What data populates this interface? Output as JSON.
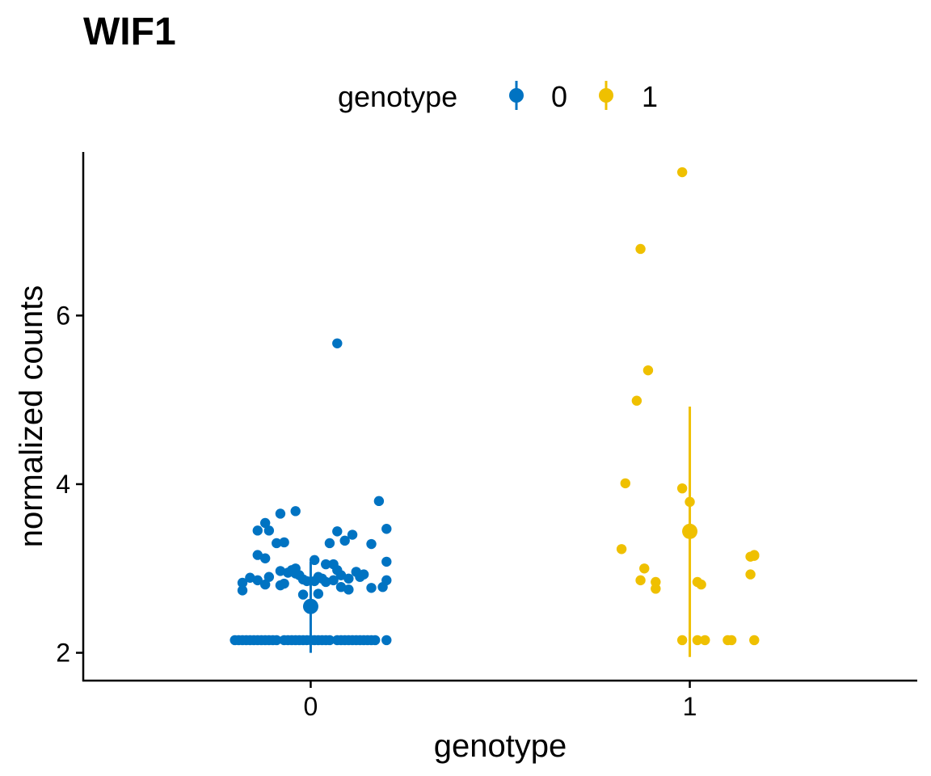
{
  "chart_data": {
    "type": "scatter",
    "title": "WIF1",
    "xlabel": "genotype",
    "ylabel": "normalized counts",
    "categories": [
      "0",
      "1"
    ],
    "y_ticks": [
      2,
      4,
      6
    ],
    "ylim": [
      1.67,
      7.94
    ],
    "xlim": [
      -0.6,
      1.6
    ],
    "grid": false,
    "legend": {
      "title": "genotype",
      "position": "top",
      "entries": [
        "0",
        "1"
      ]
    },
    "colors": {
      "0": "#0073C2",
      "1": "#EFC000"
    },
    "series": [
      {
        "name": "0",
        "summary": {
          "x": 0,
          "mean": 2.55,
          "ymin": 2.0,
          "ymax": 3.08
        },
        "points": [
          [
            -0.2,
            2.15
          ],
          [
            -0.19,
            2.15
          ],
          [
            -0.18,
            2.15
          ],
          [
            -0.17,
            2.15
          ],
          [
            -0.16,
            2.15
          ],
          [
            -0.15,
            2.15
          ],
          [
            -0.14,
            2.15
          ],
          [
            -0.13,
            2.15
          ],
          [
            -0.12,
            2.15
          ],
          [
            -0.11,
            2.15
          ],
          [
            -0.1,
            2.15
          ],
          [
            -0.09,
            2.15
          ],
          [
            -0.07,
            2.15
          ],
          [
            -0.06,
            2.15
          ],
          [
            -0.05,
            2.15
          ],
          [
            -0.04,
            2.15
          ],
          [
            -0.03,
            2.15
          ],
          [
            -0.02,
            2.15
          ],
          [
            -0.01,
            2.15
          ],
          [
            0.0,
            2.15
          ],
          [
            0.01,
            2.15
          ],
          [
            0.02,
            2.15
          ],
          [
            0.03,
            2.15
          ],
          [
            0.04,
            2.15
          ],
          [
            0.05,
            2.15
          ],
          [
            0.07,
            2.15
          ],
          [
            0.08,
            2.15
          ],
          [
            0.09,
            2.15
          ],
          [
            0.1,
            2.15
          ],
          [
            0.11,
            2.15
          ],
          [
            0.12,
            2.15
          ],
          [
            0.13,
            2.15
          ],
          [
            0.14,
            2.15
          ],
          [
            0.15,
            2.15
          ],
          [
            0.16,
            2.15
          ],
          [
            0.17,
            2.15
          ],
          [
            0.2,
            2.15
          ],
          [
            -0.18,
            2.74
          ],
          [
            -0.18,
            2.83
          ],
          [
            -0.16,
            2.89
          ],
          [
            -0.14,
            2.86
          ],
          [
            -0.12,
            2.81
          ],
          [
            -0.14,
            3.45
          ],
          [
            -0.12,
            3.54
          ],
          [
            -0.11,
            3.45
          ],
          [
            -0.14,
            3.16
          ],
          [
            -0.12,
            3.12
          ],
          [
            -0.11,
            2.9
          ],
          [
            -0.09,
            3.3
          ],
          [
            -0.07,
            3.31
          ],
          [
            -0.08,
            3.65
          ],
          [
            -0.04,
            3.68
          ],
          [
            -0.08,
            2.8
          ],
          [
            -0.07,
            2.82
          ],
          [
            -0.08,
            2.97
          ],
          [
            -0.06,
            2.95
          ],
          [
            -0.05,
            2.98
          ],
          [
            -0.04,
            2.94
          ],
          [
            -0.04,
            3.0
          ],
          [
            -0.03,
            2.92
          ],
          [
            -0.02,
            2.87
          ],
          [
            -0.01,
            2.85
          ],
          [
            -0.02,
            2.69
          ],
          [
            0.01,
            2.85
          ],
          [
            0.02,
            2.9
          ],
          [
            0.03,
            2.88
          ],
          [
            0.01,
            3.1
          ],
          [
            0.04,
            2.84
          ],
          [
            0.04,
            3.05
          ],
          [
            0.05,
            3.3
          ],
          [
            0.06,
            3.05
          ],
          [
            0.07,
            2.98
          ],
          [
            0.08,
            2.92
          ],
          [
            0.06,
            2.86
          ],
          [
            0.08,
            2.78
          ],
          [
            0.07,
            3.44
          ],
          [
            0.09,
            3.33
          ],
          [
            0.11,
            3.4
          ],
          [
            0.1,
            2.75
          ],
          [
            0.1,
            2.88
          ],
          [
            0.12,
            2.96
          ],
          [
            0.13,
            2.9
          ],
          [
            0.14,
            2.93
          ],
          [
            0.16,
            2.77
          ],
          [
            0.16,
            3.29
          ],
          [
            0.18,
            3.8
          ],
          [
            0.19,
            2.78
          ],
          [
            0.2,
            2.86
          ],
          [
            0.2,
            3.08
          ],
          [
            0.2,
            3.47
          ],
          [
            0.07,
            5.67
          ],
          [
            0.02,
            2.7
          ]
        ]
      },
      {
        "name": "1",
        "summary": {
          "x": 1,
          "mean": 3.44,
          "ymin": 1.95,
          "ymax": 4.92
        },
        "points": [
          [
            0.98,
            7.7
          ],
          [
            0.87,
            6.79
          ],
          [
            0.89,
            5.35
          ],
          [
            0.86,
            4.99
          ],
          [
            0.83,
            4.01
          ],
          [
            0.98,
            3.95
          ],
          [
            1.0,
            3.79
          ],
          [
            0.82,
            3.23
          ],
          [
            0.88,
            3.0
          ],
          [
            0.87,
            2.86
          ],
          [
            0.91,
            2.84
          ],
          [
            0.91,
            2.76
          ],
          [
            1.02,
            2.84
          ],
          [
            1.03,
            2.81
          ],
          [
            1.16,
            2.93
          ],
          [
            1.16,
            3.14
          ],
          [
            1.17,
            3.16
          ],
          [
            1.17,
            3.15
          ],
          [
            0.98,
            2.15
          ],
          [
            1.02,
            2.15
          ],
          [
            1.04,
            2.15
          ],
          [
            1.1,
            2.15
          ],
          [
            1.11,
            2.15
          ],
          [
            1.17,
            2.15
          ]
        ]
      }
    ]
  }
}
